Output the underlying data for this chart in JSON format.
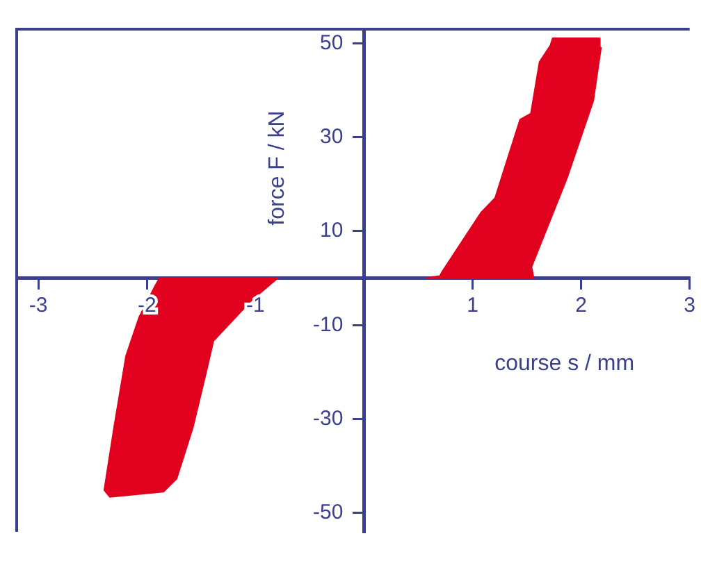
{
  "chart_data": {
    "type": "area",
    "xlabel": "course s / mm",
    "ylabel": "force F / kN",
    "xlim": [
      -3.2,
      3.0
    ],
    "xticks": [
      -3,
      -2,
      -1,
      1,
      2,
      3
    ],
    "ylim": [
      -54,
      53
    ],
    "yticks": [
      -50,
      -30,
      -10,
      10,
      30,
      50
    ],
    "grid": false,
    "legend": false,
    "series": [
      {
        "color": "#e2001f",
        "x": [
          0.57,
          1.56,
          1.54,
          1.87,
          2.11,
          2.18,
          2.17,
          1.74,
          1.72,
          1.62,
          1.54,
          1.44,
          1.21,
          1.08,
          0.73,
          0.7,
          0.57
        ],
        "values": [
          0,
          0,
          2.4,
          21.5,
          37.8,
          49,
          51,
          51,
          49.5,
          46,
          35,
          33.7,
          17,
          13.9,
          1.6,
          0.4,
          0
        ]
      },
      {
        "color": "#e2001f",
        "x": [
          -1.88,
          -0.8,
          -1.04,
          -1.39,
          -1.45,
          -1.58,
          -1.73,
          -1.85,
          -2.34,
          -2.39,
          -2.3,
          -2.19,
          -2.07,
          -1.92,
          -1.88
        ],
        "values": [
          0,
          0,
          -4.7,
          -13.3,
          -19.3,
          -31.8,
          -42.7,
          -45.4,
          -46.5,
          -45.1,
          -31.8,
          -16.6,
          -8.4,
          -1.6,
          0
        ]
      }
    ]
  }
}
